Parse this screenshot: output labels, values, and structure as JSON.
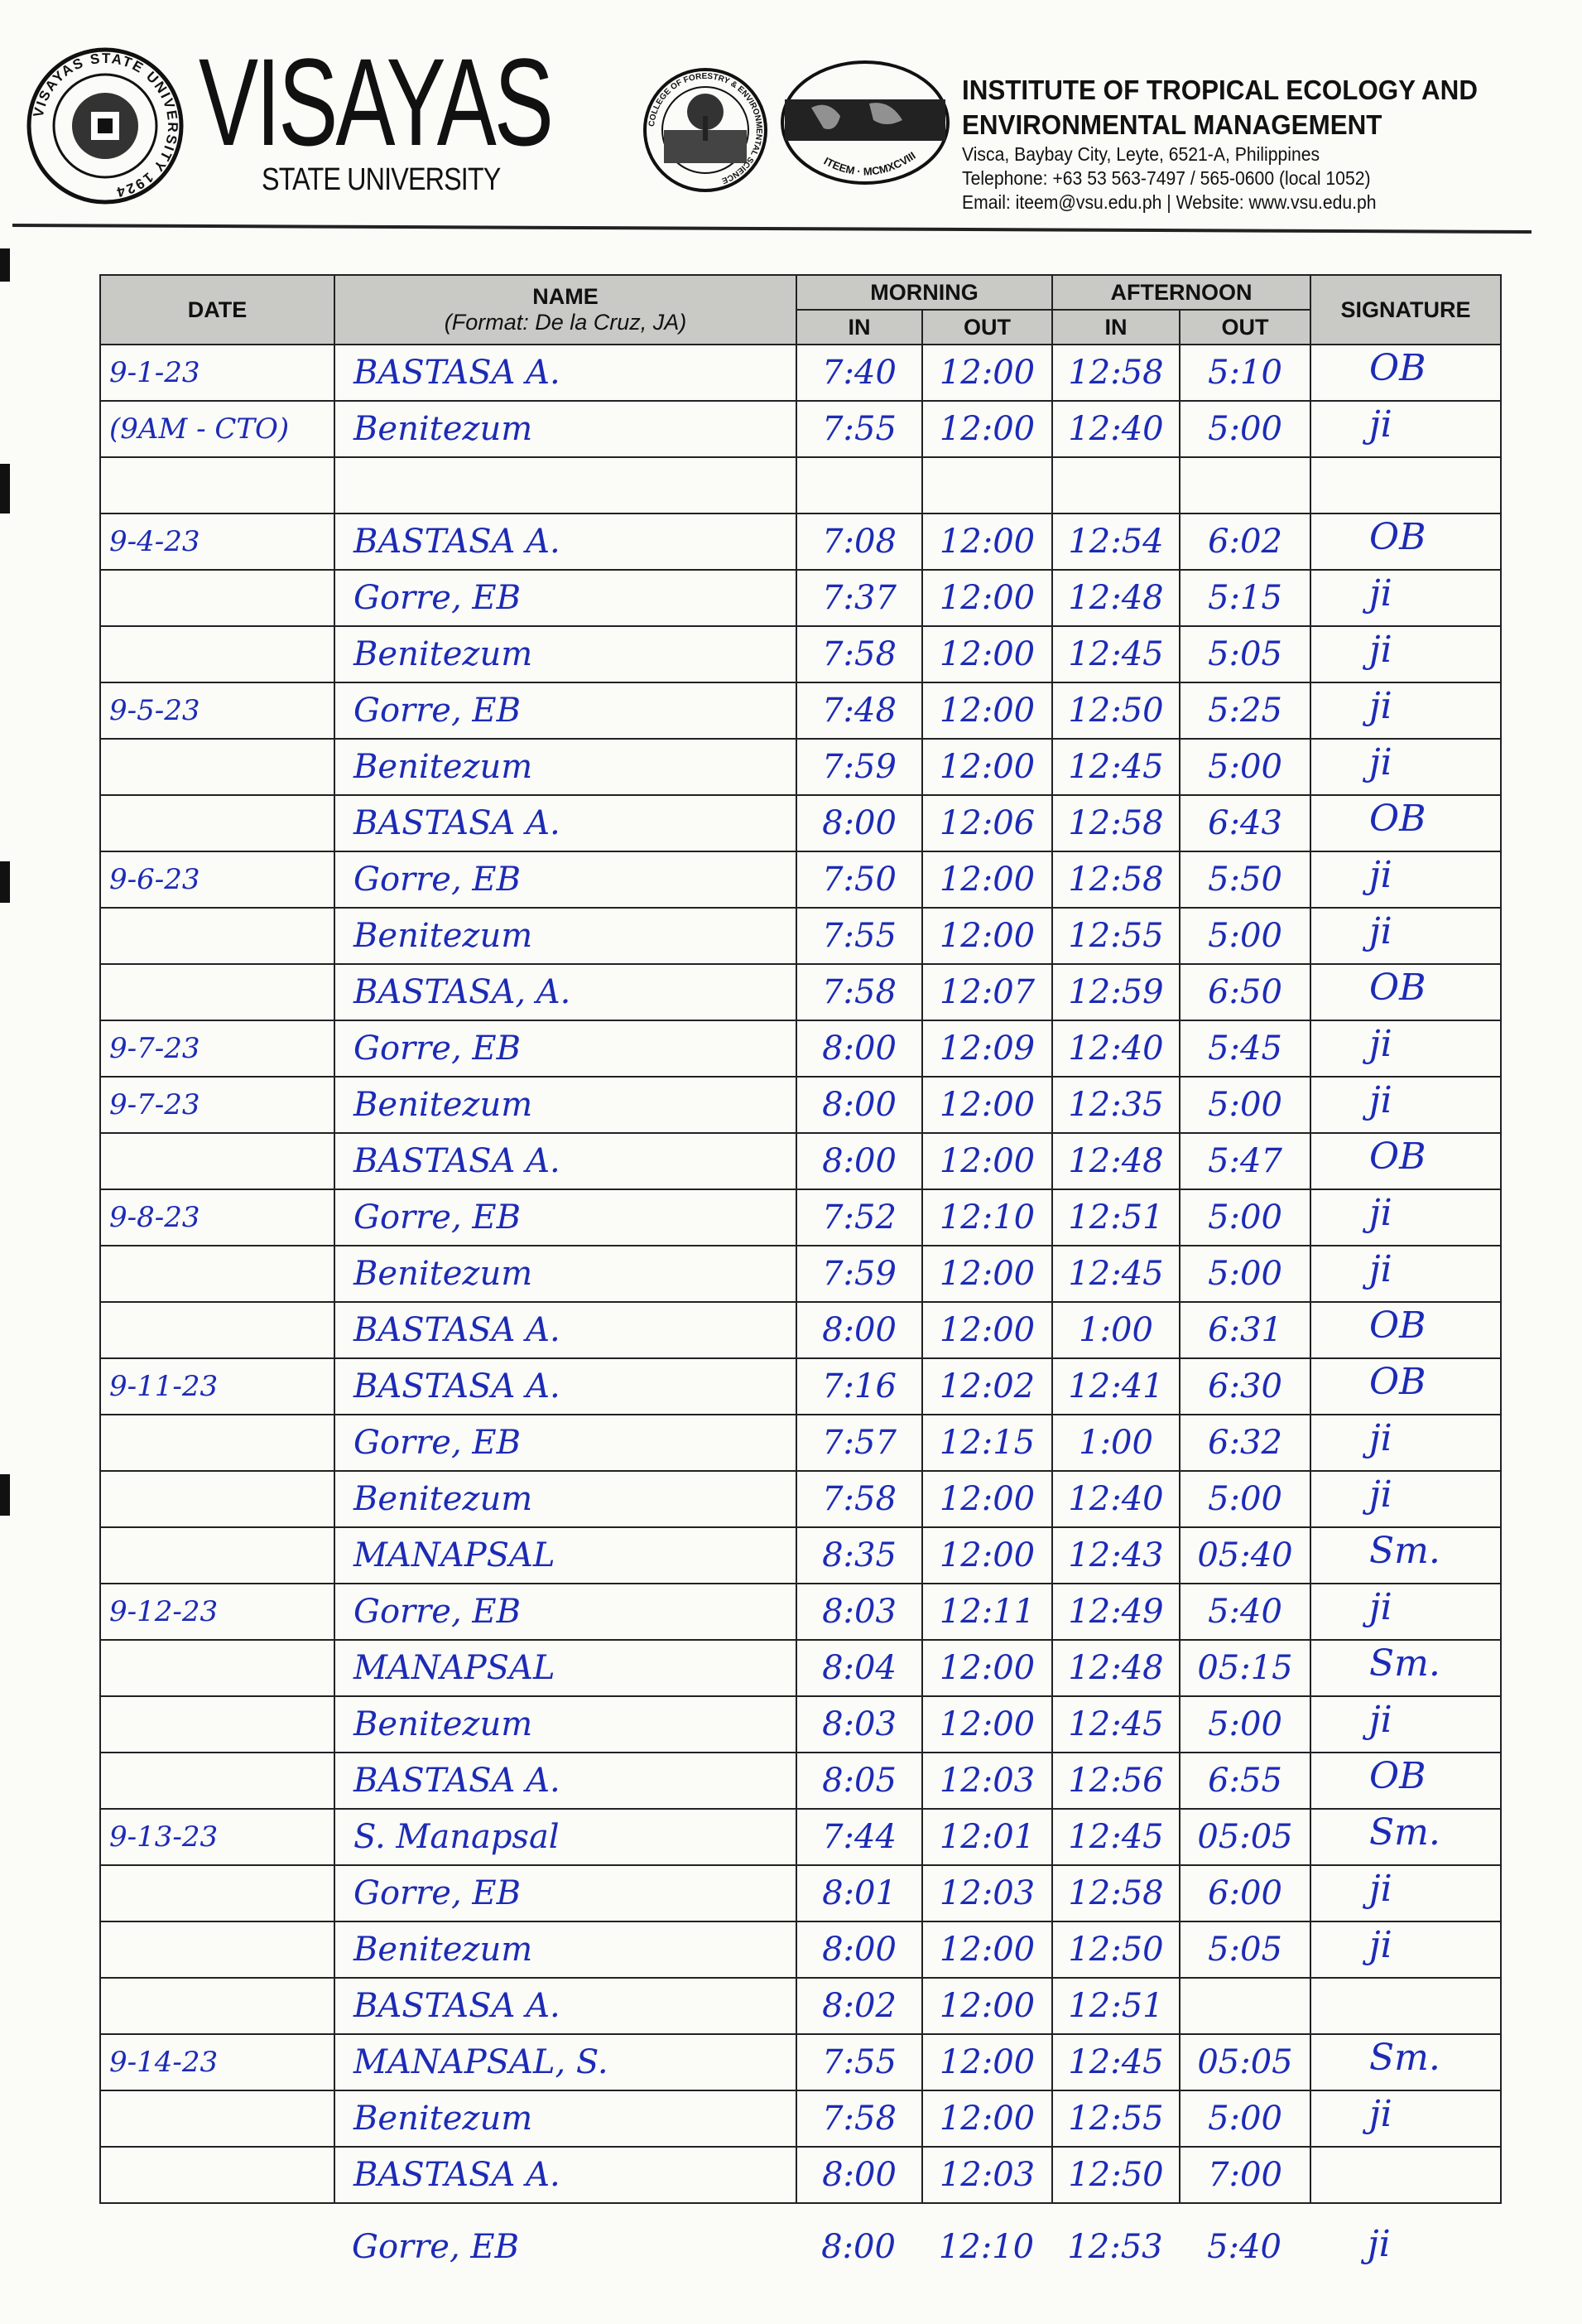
{
  "header": {
    "university_seal_text": "VISAYAS STATE UNIVERSITY 1924",
    "brand_name": "VISAYAS",
    "brand_sub": "STATE UNIVERSITY",
    "college_seal_text": "COLLEGE OF FORESTRY & ENVIRONMENTAL SCIENCE",
    "institute_logo_text": "ITEEM · MCMXCVIII",
    "institute_title_1": "INSTITUTE OF TROPICAL ECOLOGY AND",
    "institute_title_2": "ENVIRONMENTAL MANAGEMENT",
    "address": "Visca, Baybay City, Leyte, 6521-A, Philippines",
    "telephone": "Telephone: +63 53 563-7497 / 565-0600 (local 1052)",
    "contact": "Email:  iteem@vsu.edu.ph | Website:  www.vsu.edu.ph"
  },
  "table": {
    "headers": {
      "date": "DATE",
      "name": "NAME",
      "name_format": "(Format:  De la Cruz, JA)",
      "morning": "MORNING",
      "afternoon": "AFTERNOON",
      "in": "IN",
      "out": "OUT",
      "signature": "SIGNATURE"
    },
    "rows": [
      {
        "date": "9-1-23",
        "name": "BASTASA A.",
        "am_in": "7:40",
        "am_out": "12:00",
        "pm_in": "12:58",
        "pm_out": "5:10",
        "sig": "OB"
      },
      {
        "date": "(9AM - CTO)",
        "name": "Benitezum",
        "am_in": "7:55",
        "am_out": "12:00",
        "pm_in": "12:40",
        "pm_out": "5:00",
        "sig": "ji"
      },
      {
        "date": "",
        "name": "",
        "am_in": "",
        "am_out": "",
        "pm_in": "",
        "pm_out": "",
        "sig": ""
      },
      {
        "date": "9-4-23",
        "name": "BASTASA A.",
        "am_in": "7:08",
        "am_out": "12:00",
        "pm_in": "12:54",
        "pm_out": "6:02",
        "sig": "OB"
      },
      {
        "date": "",
        "name": "Gorre, EB",
        "am_in": "7:37",
        "am_out": "12:00",
        "pm_in": "12:48",
        "pm_out": "5:15",
        "sig": "ji"
      },
      {
        "date": "",
        "name": "Benitezum",
        "am_in": "7:58",
        "am_out": "12:00",
        "pm_in": "12:45",
        "pm_out": "5:05",
        "sig": "ji"
      },
      {
        "date": "9-5-23",
        "name": "Gorre, EB",
        "am_in": "7:48",
        "am_out": "12:00",
        "pm_in": "12:50",
        "pm_out": "5:25",
        "sig": "ji"
      },
      {
        "date": "",
        "name": "Benitezum",
        "am_in": "7:59",
        "am_out": "12:00",
        "pm_in": "12:45",
        "pm_out": "5:00",
        "sig": "ji"
      },
      {
        "date": "",
        "name": "BASTASA A.",
        "am_in": "8:00",
        "am_out": "12:06",
        "pm_in": "12:58",
        "pm_out": "6:43",
        "sig": "OB"
      },
      {
        "date": "9-6-23",
        "name": "Gorre, EB",
        "am_in": "7:50",
        "am_out": "12:00",
        "pm_in": "12:58",
        "pm_out": "5:50",
        "sig": "ji"
      },
      {
        "date": "",
        "name": "Benitezum",
        "am_in": "7:55",
        "am_out": "12:00",
        "pm_in": "12:55",
        "pm_out": "5:00",
        "sig": "ji"
      },
      {
        "date": "",
        "name": "BASTASA, A.",
        "am_in": "7:58",
        "am_out": "12:07",
        "pm_in": "12:59",
        "pm_out": "6:50",
        "sig": "OB"
      },
      {
        "date": "9-7-23",
        "name": "Gorre, EB",
        "am_in": "8:00",
        "am_out": "12:09",
        "pm_in": "12:40",
        "pm_out": "5:45",
        "sig": "ji"
      },
      {
        "date": "9-7-23",
        "name": "Benitezum",
        "am_in": "8:00",
        "am_out": "12:00",
        "pm_in": "12:35",
        "pm_out": "5:00",
        "sig": "ji"
      },
      {
        "date": "",
        "name": "BASTASA A.",
        "am_in": "8:00",
        "am_out": "12:00",
        "pm_in": "12:48",
        "pm_out": "5:47",
        "sig": "OB"
      },
      {
        "date": "9-8-23",
        "name": "Gorre, EB",
        "am_in": "7:52",
        "am_out": "12:10",
        "pm_in": "12:51",
        "pm_out": "5:00",
        "sig": "ji"
      },
      {
        "date": "",
        "name": "Benitezum",
        "am_in": "7:59",
        "am_out": "12:00",
        "pm_in": "12:45",
        "pm_out": "5:00",
        "sig": "ji"
      },
      {
        "date": "",
        "name": "BASTASA A.",
        "am_in": "8:00",
        "am_out": "12:00",
        "pm_in": "1:00",
        "pm_out": "6:31",
        "sig": "OB"
      },
      {
        "date": "9-11-23",
        "name": "BASTASA A.",
        "am_in": "7:16",
        "am_out": "12:02",
        "pm_in": "12:41",
        "pm_out": "6:30",
        "sig": "OB"
      },
      {
        "date": "",
        "name": "Gorre, EB",
        "am_in": "7:57",
        "am_out": "12:15",
        "pm_in": "1:00",
        "pm_out": "6:32",
        "sig": "ji"
      },
      {
        "date": "",
        "name": "Benitezum",
        "am_in": "7:58",
        "am_out": "12:00",
        "pm_in": "12:40",
        "pm_out": "5:00",
        "sig": "ji"
      },
      {
        "date": "",
        "name": "MANAPSAL",
        "am_in": "8:35",
        "am_out": "12:00",
        "pm_in": "12:43",
        "pm_out": "05:40",
        "sig": "Sm."
      },
      {
        "date": "9-12-23",
        "name": "Gorre, EB",
        "am_in": "8:03",
        "am_out": "12:11",
        "pm_in": "12:49",
        "pm_out": "5:40",
        "sig": "ji"
      },
      {
        "date": "",
        "name": "MANAPSAL",
        "am_in": "8:04",
        "am_out": "12:00",
        "pm_in": "12:48",
        "pm_out": "05:15",
        "sig": "Sm."
      },
      {
        "date": "",
        "name": "Benitezum",
        "am_in": "8:03",
        "am_out": "12:00",
        "pm_in": "12:45",
        "pm_out": "5:00",
        "sig": "ji"
      },
      {
        "date": "",
        "name": "BASTASA A.",
        "am_in": "8:05",
        "am_out": "12:03",
        "pm_in": "12:56",
        "pm_out": "6:55",
        "sig": "OB"
      },
      {
        "date": "9-13-23",
        "name": "S. Manapsal",
        "am_in": "7:44",
        "am_out": "12:01",
        "pm_in": "12:45",
        "pm_out": "05:05",
        "sig": "Sm."
      },
      {
        "date": "",
        "name": "Gorre, EB",
        "am_in": "8:01",
        "am_out": "12:03",
        "pm_in": "12:58",
        "pm_out": "6:00",
        "sig": "ji"
      },
      {
        "date": "",
        "name": "Benitezum",
        "am_in": "8:00",
        "am_out": "12:00",
        "pm_in": "12:50",
        "pm_out": "5:05",
        "sig": "ji"
      },
      {
        "date": "",
        "name": "BASTASA A.",
        "am_in": "8:02",
        "am_out": "12:00",
        "pm_in": "12:51",
        "pm_out": "",
        "sig": ""
      },
      {
        "date": "9-14-23",
        "name": "MANAPSAL, S.",
        "am_in": "7:55",
        "am_out": "12:00",
        "pm_in": "12:45",
        "pm_out": "05:05",
        "sig": "Sm."
      },
      {
        "date": "",
        "name": "Benitezum",
        "am_in": "7:58",
        "am_out": "12:00",
        "pm_in": "12:55",
        "pm_out": "5:00",
        "sig": "ji"
      },
      {
        "date": "",
        "name": "BASTASA A.",
        "am_in": "8:00",
        "am_out": "12:03",
        "pm_in": "12:50",
        "pm_out": "7:00",
        "sig": ""
      }
    ],
    "extra_row": {
      "name": "Gorre, EB",
      "am_in": "8:00",
      "am_out": "12:10",
      "pm_in": "12:53",
      "pm_out": "5:40",
      "sig": "ji"
    }
  },
  "colors": {
    "ink": "#1c2bb5",
    "header_fill": "#c9c9c6"
  }
}
